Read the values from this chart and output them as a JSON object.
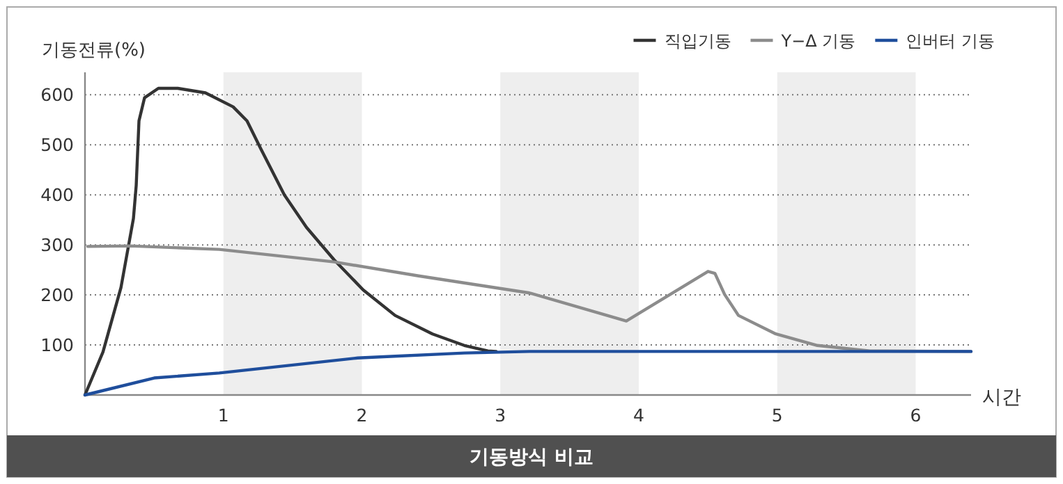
{
  "chart_data": {
    "type": "line",
    "title": "기동방식 비교",
    "xlabel": "시간",
    "ylabel": "기동전류(%)",
    "xlim": [
      0,
      6.4
    ],
    "ylim": [
      0,
      645
    ],
    "xticks": [
      1,
      2,
      3,
      4,
      5,
      6
    ],
    "yticks": [
      100,
      200,
      300,
      400,
      500,
      600
    ],
    "grid": "y",
    "legend": "top right",
    "line_style": "solid",
    "marker": "none",
    "bands": [
      {
        "axis": "x",
        "from": 1,
        "to": 2,
        "color": "#eeeeee"
      },
      {
        "axis": "x",
        "from": 3,
        "to": 4,
        "color": "#eeeeee"
      },
      {
        "axis": "x",
        "from": 5,
        "to": 6,
        "color": "#eeeeee"
      }
    ],
    "series": [
      {
        "name": "직입기동",
        "color": "#333333",
        "x": [
          0,
          0.13,
          0.26,
          0.35,
          0.37,
          0.39,
          0.43,
          0.53,
          0.67,
          0.87,
          1.07,
          1.17,
          1.27,
          1.44,
          1.6,
          1.8,
          2.01,
          2.24,
          2.51,
          2.74,
          2.91,
          2.97
        ],
        "values": [
          0,
          86,
          215,
          353,
          419,
          548,
          594,
          613,
          613,
          604,
          576,
          548,
          492,
          400,
          335,
          270,
          210,
          159,
          122,
          99,
          88,
          87
        ]
      },
      {
        "name": "Y−Δ 기동",
        "color": "#8c8c8c",
        "x": [
          0.02,
          0.33,
          0.97,
          1.8,
          2.41,
          3.21,
          3.91,
          4.5,
          4.55,
          4.62,
          4.72,
          4.99,
          5.29,
          5.67,
          6.4
        ],
        "values": [
          297,
          298,
          291,
          266,
          238,
          204,
          148,
          247,
          243,
          201,
          159,
          122,
          99,
          88,
          87
        ]
      },
      {
        "name": "인버터 기동",
        "color": "#1f4e9c",
        "x": [
          0,
          0.5,
          0.97,
          1.97,
          2.74,
          3.21,
          4,
          5,
          6,
          6.4
        ],
        "values": [
          0,
          34,
          44,
          74,
          84,
          87,
          87,
          87,
          87,
          87
        ]
      }
    ]
  }
}
